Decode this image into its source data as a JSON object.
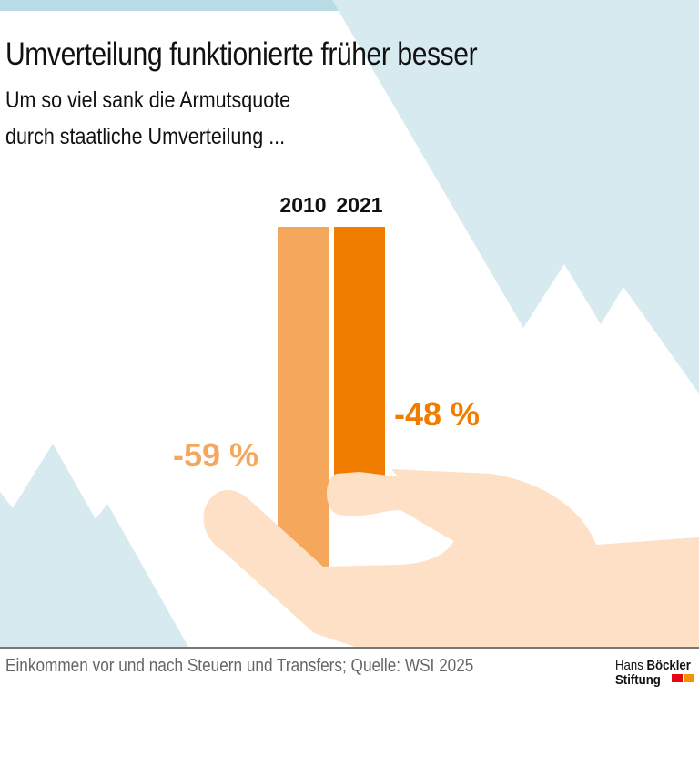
{
  "title": "Umverteilung funktionierte früher besser",
  "subtitle_line1": "Um so viel sank die Armutsquote",
  "subtitle_line2": "durch staatliche Umverteilung ...",
  "footer": "Einkommen vor und nach Steuern und Transfers; Quelle: WSI 2025",
  "logo": {
    "line1_light": "Hans ",
    "line1_bold": "Böckler",
    "line2": "Stiftung"
  },
  "colors": {
    "bar_2010": "#f5a75c",
    "bar_2021": "#f07d00",
    "mountain": "#d6eaf0",
    "hand": "#fde0c5"
  },
  "chart_data": {
    "type": "bar",
    "categories": [
      "2010",
      "2021"
    ],
    "values": [
      -59,
      -48
    ],
    "labels": [
      "-59 %",
      "-48 %"
    ],
    "title": "Umverteilung funktionierte früher besser",
    "unit": "%"
  }
}
